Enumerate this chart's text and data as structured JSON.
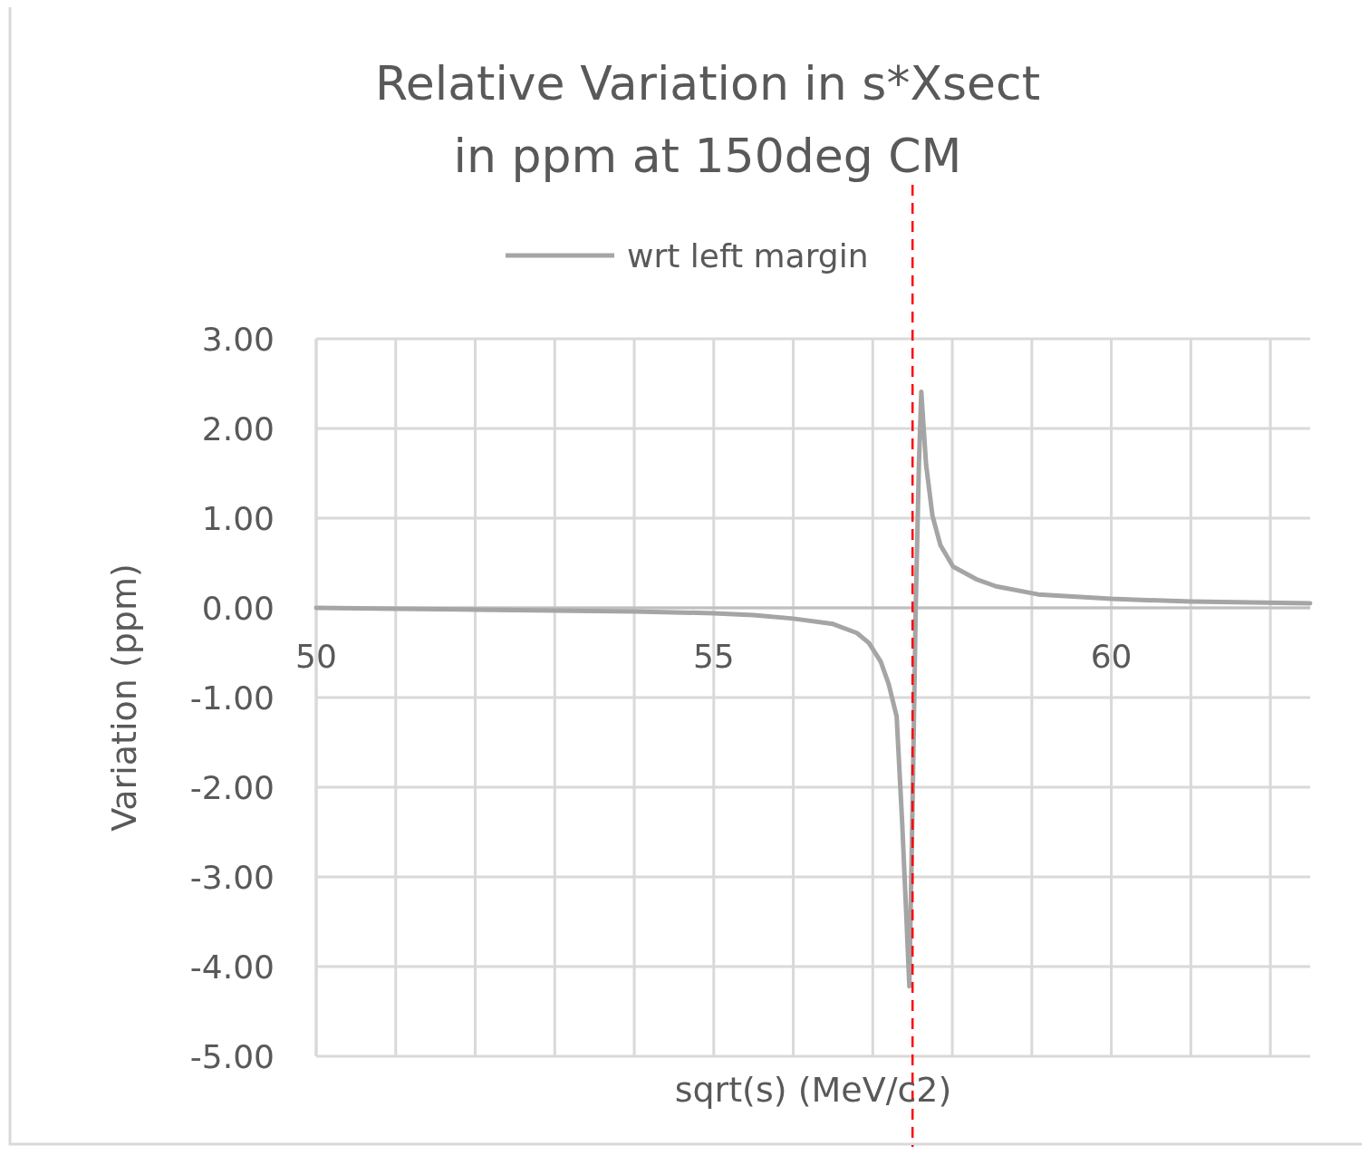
{
  "chart_data": {
    "type": "line",
    "title": "Relative Variation in s*Xsect\nin ppm at 150deg CM",
    "xlabel": "sqrt(s) (MeV/c2)",
    "ylabel": "Variation (ppm)",
    "xlim": [
      50,
      62.5
    ],
    "xticks": [
      50,
      {
        "value": 51,
        "label": null
      },
      {
        "value": 52,
        "label": null
      },
      {
        "value": 53,
        "label": null
      },
      {
        "value": 54,
        "label": null
      },
      55,
      {
        "value": 56,
        "label": null
      },
      {
        "value": 57,
        "label": null
      },
      {
        "value": 58,
        "label": null
      },
      {
        "value": 59,
        "label": null
      },
      60,
      {
        "value": 61,
        "label": null
      },
      {
        "value": 62,
        "label": null
      }
    ],
    "ylim": [
      -5,
      3
    ],
    "yticks": [
      {
        "value": -5,
        "label": "-5.00"
      },
      {
        "value": -4,
        "label": "-4.00"
      },
      {
        "value": -3,
        "label": "-3.00"
      },
      {
        "value": -2,
        "label": "-2.00"
      },
      {
        "value": -1,
        "label": "-1.00"
      },
      {
        "value": 0,
        "label": "0.00"
      },
      {
        "value": 1,
        "label": "1.00"
      },
      {
        "value": 2,
        "label": "2.00"
      },
      {
        "value": 3,
        "label": "3.00"
      }
    ],
    "grid": true,
    "legend": "top",
    "line_style": "solid",
    "ref_lines": [
      {
        "axis": "x",
        "value": 57.5,
        "color": "#ff0000",
        "line_style": "dashed"
      }
    ],
    "series": [
      {
        "name": "wrt left margin",
        "color": "#a5a5a5",
        "x": [
          50,
          51,
          52,
          53,
          54,
          55,
          55.5,
          56,
          56.5,
          56.8,
          56.95,
          57.1,
          57.2,
          57.3,
          57.37,
          57.42,
          57.46,
          57.5,
          57.54,
          57.58,
          57.61,
          57.64,
          57.67,
          57.75,
          57.85,
          58.01,
          58.3,
          58.55,
          59.08,
          60,
          61,
          62.5
        ],
        "values": [
          0,
          -0.01,
          -0.02,
          -0.03,
          -0.04,
          -0.06,
          -0.08,
          -0.12,
          -0.18,
          -0.28,
          -0.39,
          -0.6,
          -0.85,
          -1.21,
          -2.4,
          -3.4,
          -4.22,
          -2.2,
          0,
          1.6,
          2.41,
          2.0,
          1.6,
          1.03,
          0.7,
          0.46,
          0.32,
          0.24,
          0.15,
          0.1,
          0.07,
          0.05
        ]
      }
    ]
  }
}
